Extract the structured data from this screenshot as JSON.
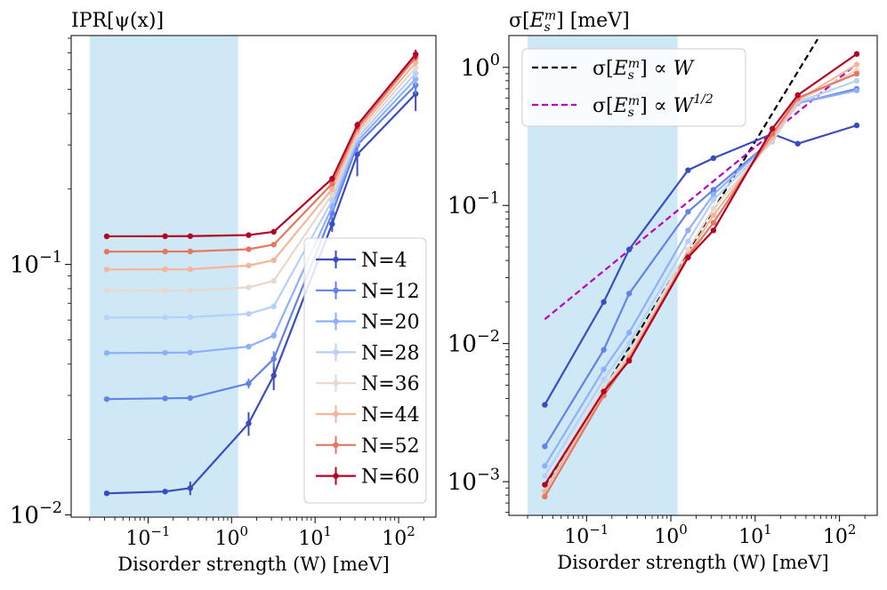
{
  "figure": {
    "left_title": "IPR[ψ(x)]",
    "right_title_parts": [
      "σ[",
      "E",
      "s",
      "m",
      "] [meV]"
    ]
  },
  "chart_data": [
    {
      "type": "line",
      "title": "IPR[ψ(x)]",
      "xlabel": "Disorder strength (W) [meV]",
      "ylabel": "",
      "xscale": "log",
      "yscale": "log",
      "xlim": [
        0.012,
        280
      ],
      "ylim": [
        0.0098,
        0.82
      ],
      "shaded_region": {
        "x_from": 0.02,
        "x_to": 1.2,
        "color": "#cfe8f5"
      },
      "x_ticks": [
        {
          "value": 0.1,
          "base": "10",
          "exp": "−1"
        },
        {
          "value": 1,
          "base": "10",
          "exp": "0"
        },
        {
          "value": 10,
          "base": "10",
          "exp": "1"
        },
        {
          "value": 100,
          "base": "10",
          "exp": "2"
        }
      ],
      "y_ticks": [
        {
          "value": 0.01,
          "base": "10",
          "exp": "−2"
        },
        {
          "value": 0.1,
          "base": "10",
          "exp": "−1"
        }
      ],
      "x": [
        0.032,
        0.16,
        0.32,
        1.6,
        3.2,
        16,
        32,
        160
      ],
      "legend": {
        "position": "center-right"
      },
      "series": [
        {
          "name": "N=4",
          "color": "#3b4cc0",
          "values": [
            0.0122,
            0.0124,
            0.0128,
            0.0232,
            0.036,
            0.145,
            0.275,
            0.48
          ],
          "errors": [
            0.0001,
            0.0002,
            0.0008,
            0.0025,
            0.0045,
            0.01,
            0.05,
            0.07
          ]
        },
        {
          "name": "N=12",
          "color": "#6282ea",
          "values": [
            0.029,
            0.0292,
            0.0293,
            0.0335,
            0.042,
            0.16,
            0.3,
            0.52
          ],
          "errors": [
            0.0003,
            0.0003,
            0.0004,
            0.0015,
            0.003,
            0.008,
            0.02,
            0.04
          ]
        },
        {
          "name": "N=20",
          "color": "#8db0fe",
          "values": [
            0.0443,
            0.0444,
            0.0445,
            0.047,
            0.052,
            0.17,
            0.31,
            0.55
          ],
          "errors": [
            0.0003,
            0.0003,
            0.0003,
            0.0008,
            0.0015,
            0.006,
            0.015,
            0.03
          ]
        },
        {
          "name": "N=28",
          "color": "#b8d0f9",
          "values": [
            0.0614,
            0.0615,
            0.0616,
            0.0635,
            0.068,
            0.18,
            0.32,
            0.58
          ],
          "errors": [
            0.0003,
            0.0003,
            0.0003,
            0.0006,
            0.001,
            0.005,
            0.012,
            0.025
          ]
        },
        {
          "name": "N=36",
          "color": "#e7d8ce",
          "values": [
            0.0785,
            0.0786,
            0.0787,
            0.081,
            0.086,
            0.19,
            0.33,
            0.61
          ],
          "errors": [
            0.0003,
            0.0003,
            0.0003,
            0.0005,
            0.0008,
            0.005,
            0.01,
            0.02
          ]
        },
        {
          "name": "N=44",
          "color": "#f4b59a",
          "values": [
            0.0955,
            0.0956,
            0.0957,
            0.099,
            0.104,
            0.2,
            0.34,
            0.64
          ],
          "errors": [
            0.0003,
            0.0003,
            0.0003,
            0.0005,
            0.0008,
            0.005,
            0.01,
            0.02
          ]
        },
        {
          "name": "N=52",
          "color": "#e4775f",
          "values": [
            0.1125,
            0.1126,
            0.1127,
            0.115,
            0.12,
            0.21,
            0.35,
            0.67
          ],
          "errors": [
            0.0003,
            0.0003,
            0.0003,
            0.0005,
            0.0008,
            0.005,
            0.01,
            0.02
          ]
        },
        {
          "name": "N=60",
          "color": "#b40426",
          "values": [
            0.1295,
            0.1296,
            0.1297,
            0.131,
            0.135,
            0.22,
            0.36,
            0.69
          ],
          "errors": [
            0.0003,
            0.0003,
            0.0003,
            0.0005,
            0.0008,
            0.006,
            0.012,
            0.03
          ]
        }
      ]
    },
    {
      "type": "line",
      "title": "σ[E_s^m] [meV]",
      "xlabel": "Disorder strength (W) [meV]",
      "ylabel": "",
      "xscale": "log",
      "yscale": "log",
      "xlim": [
        0.012,
        280
      ],
      "ylim": [
        0.00057,
        1.7
      ],
      "shaded_region": {
        "x_from": 0.02,
        "x_to": 1.2,
        "color": "#cfe8f5"
      },
      "x_ticks": [
        {
          "value": 0.1,
          "base": "10",
          "exp": "−1"
        },
        {
          "value": 1,
          "base": "10",
          "exp": "0"
        },
        {
          "value": 10,
          "base": "10",
          "exp": "1"
        },
        {
          "value": 100,
          "base": "10",
          "exp": "2"
        }
      ],
      "y_ticks": [
        {
          "value": 0.001,
          "base": "10",
          "exp": "−3"
        },
        {
          "value": 0.01,
          "base": "10",
          "exp": "−2"
        },
        {
          "value": 0.1,
          "base": "10",
          "exp": "−1"
        },
        {
          "value": 1,
          "base": "10",
          "exp": "0"
        }
      ],
      "x": [
        0.032,
        0.16,
        0.32,
        1.6,
        3.2,
        16,
        32,
        160
      ],
      "legend": {
        "position": "top-left",
        "entries": [
          {
            "name": "σ[E_s^m] ∝ W",
            "color": "#000000",
            "label_pre": "σ[",
            "label_base": "E",
            "label_sub": "s",
            "label_sup": "m",
            "label_post": "] ∝ ",
            "label_var": "W",
            "label_var_sup": ""
          },
          {
            "name": "σ[E_s^m] ∝ W^(1/2)",
            "color": "#c000c0",
            "label_pre": "σ[",
            "label_base": "E",
            "label_sub": "s",
            "label_sup": "m",
            "label_post": "] ∝ ",
            "label_var": "W",
            "label_var_sup": "1/2"
          }
        ]
      },
      "fits": [
        {
          "name": "σ[E_s^m] ∝ W",
          "slope": 1,
          "x_range": [
            0.032,
            55
          ],
          "y_at_x0": 0.00093,
          "color": "#000000"
        },
        {
          "name": "σ[E_s^m] ∝ W^(1/2)",
          "slope": 0.5,
          "x_range": [
            0.032,
            160
          ],
          "y_at_x0": 0.015,
          "color": "#c000c0"
        }
      ],
      "series": [
        {
          "name": "N=4",
          "color": "#3b4cc0",
          "values": [
            0.0036,
            0.02,
            0.048,
            0.18,
            0.22,
            0.33,
            0.28,
            0.38
          ]
        },
        {
          "name": "N=12",
          "color": "#6282ea",
          "values": [
            0.0018,
            0.009,
            0.023,
            0.09,
            0.13,
            0.3,
            0.55,
            0.7
          ]
        },
        {
          "name": "N=20",
          "color": "#8db0fe",
          "values": [
            0.0013,
            0.0065,
            0.012,
            0.066,
            0.12,
            0.3,
            0.55,
            0.68
          ]
        },
        {
          "name": "N=28",
          "color": "#b8d0f9",
          "values": [
            0.0011,
            0.0055,
            0.01,
            0.055,
            0.11,
            0.29,
            0.56,
            0.8
          ]
        },
        {
          "name": "N=36",
          "color": "#e7d8ce",
          "values": [
            0.00095,
            0.0048,
            0.0085,
            0.048,
            0.095,
            0.3,
            0.57,
            0.95
          ]
        },
        {
          "name": "N=44",
          "color": "#f4b59a",
          "values": [
            0.00085,
            0.0045,
            0.008,
            0.044,
            0.085,
            0.31,
            0.58,
            1.05
          ]
        },
        {
          "name": "N=52",
          "color": "#e4775f",
          "values": [
            0.00078,
            0.0042,
            0.0077,
            0.043,
            0.075,
            0.33,
            0.6,
            0.9
          ]
        },
        {
          "name": "N=60",
          "color": "#b40426",
          "values": [
            0.00095,
            0.0045,
            0.0075,
            0.042,
            0.066,
            0.36,
            0.63,
            1.25
          ]
        }
      ]
    }
  ]
}
